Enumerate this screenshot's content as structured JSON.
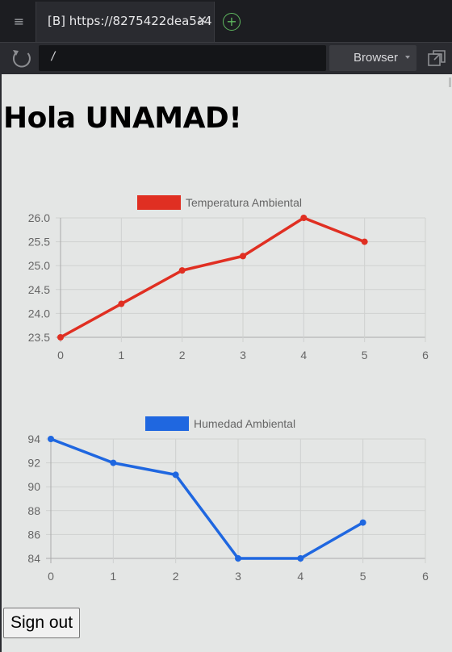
{
  "browser": {
    "tab_title": "[B] https://8275422dea5a4",
    "tab_close_glyph": "✕",
    "menu_glyph": "≡",
    "new_tab_glyph": "+",
    "url": "/",
    "browser_select": "Browser",
    "icons": [
      "menu-icon",
      "close-icon",
      "plus-icon",
      "reload-icon",
      "popout-icon"
    ]
  },
  "page": {
    "heading": "Hola UNAMAD!",
    "signout_label": "Sign out"
  },
  "chart_data": [
    {
      "type": "line",
      "legend": "Temperatura Ambiental",
      "color": "#e02f22",
      "x": [
        0,
        1,
        2,
        3,
        4,
        5
      ],
      "y": [
        23.5,
        24.2,
        24.9,
        25.2,
        26.0,
        25.5
      ],
      "xticks": [
        "0",
        "1",
        "2",
        "3",
        "4",
        "5",
        "6"
      ],
      "yticks": [
        "23.5",
        "24.0",
        "24.5",
        "25.0",
        "25.5",
        "26.0"
      ],
      "xlim": [
        0,
        6
      ],
      "ylim": [
        23.5,
        26.0
      ],
      "grid": true,
      "legend_position": "top"
    },
    {
      "type": "line",
      "legend": "Humedad Ambiental",
      "color": "#1f67e0",
      "x": [
        0,
        1,
        2,
        3,
        4,
        5
      ],
      "y": [
        94,
        92,
        91,
        84,
        84,
        87
      ],
      "xticks": [
        "0",
        "1",
        "2",
        "3",
        "4",
        "5",
        "6"
      ],
      "yticks": [
        "84",
        "86",
        "88",
        "90",
        "92",
        "94"
      ],
      "xlim": [
        0,
        6
      ],
      "ylim": [
        84,
        94
      ],
      "grid": true,
      "legend_position": "top"
    }
  ]
}
